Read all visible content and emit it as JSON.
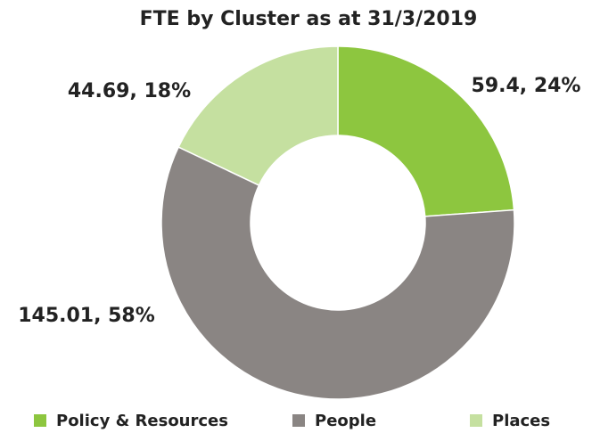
{
  "chart_data": {
    "type": "donut",
    "title": "FTE by Cluster as at 31/3/2019",
    "categories": [
      "Policy & Resources",
      "People",
      "Places"
    ],
    "values": [
      59.4,
      145.01,
      44.69
    ],
    "value_labels": [
      "59.4, 24%",
      "145.01, 58%",
      "44.69, 18%"
    ],
    "colors": [
      "#8dc63f",
      "#8a8583",
      "#c5e0a0"
    ],
    "legend": "bottom"
  }
}
